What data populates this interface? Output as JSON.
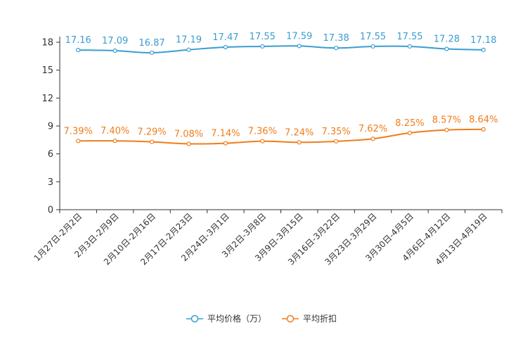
{
  "chart_data": {
    "type": "line",
    "title": "",
    "xlabel": "",
    "ylabel": "",
    "ylim": [
      0,
      18
    ],
    "yticks": [
      0,
      3,
      6,
      9,
      12,
      15,
      18
    ],
    "categories": [
      "1月27日-2月2日",
      "2月3日-2月9日",
      "2月10日-2月16日",
      "2月17日-2月23日",
      "2月24日-3月1日",
      "3月2日-3月8日",
      "3月9日-3月15日",
      "3月16日-3月22日",
      "3月23日-3月29日",
      "3月30日-4月5日",
      "4月6日-4月12日",
      "4月13日-4月19日"
    ],
    "series": [
      {
        "name": "平均价格（万）",
        "color": "#3a9dd1",
        "values": [
          17.16,
          17.09,
          16.87,
          17.19,
          17.47,
          17.55,
          17.59,
          17.38,
          17.55,
          17.55,
          17.28,
          17.18
        ]
      },
      {
        "name": "平均折扣",
        "color": "#f07d1a",
        "values": [
          7.39,
          7.4,
          7.29,
          7.08,
          7.14,
          7.36,
          7.24,
          7.35,
          7.62,
          8.25,
          8.57,
          8.64
        ],
        "labels": [
          "7.39%",
          "7.40%",
          "7.29%",
          "7.08%",
          "7.14%",
          "7.36%",
          "7.24%",
          "7.35%",
          "7.62%",
          "8.25%",
          "8.57%",
          "8.64%"
        ]
      }
    ],
    "legend_position": "bottom-center"
  }
}
